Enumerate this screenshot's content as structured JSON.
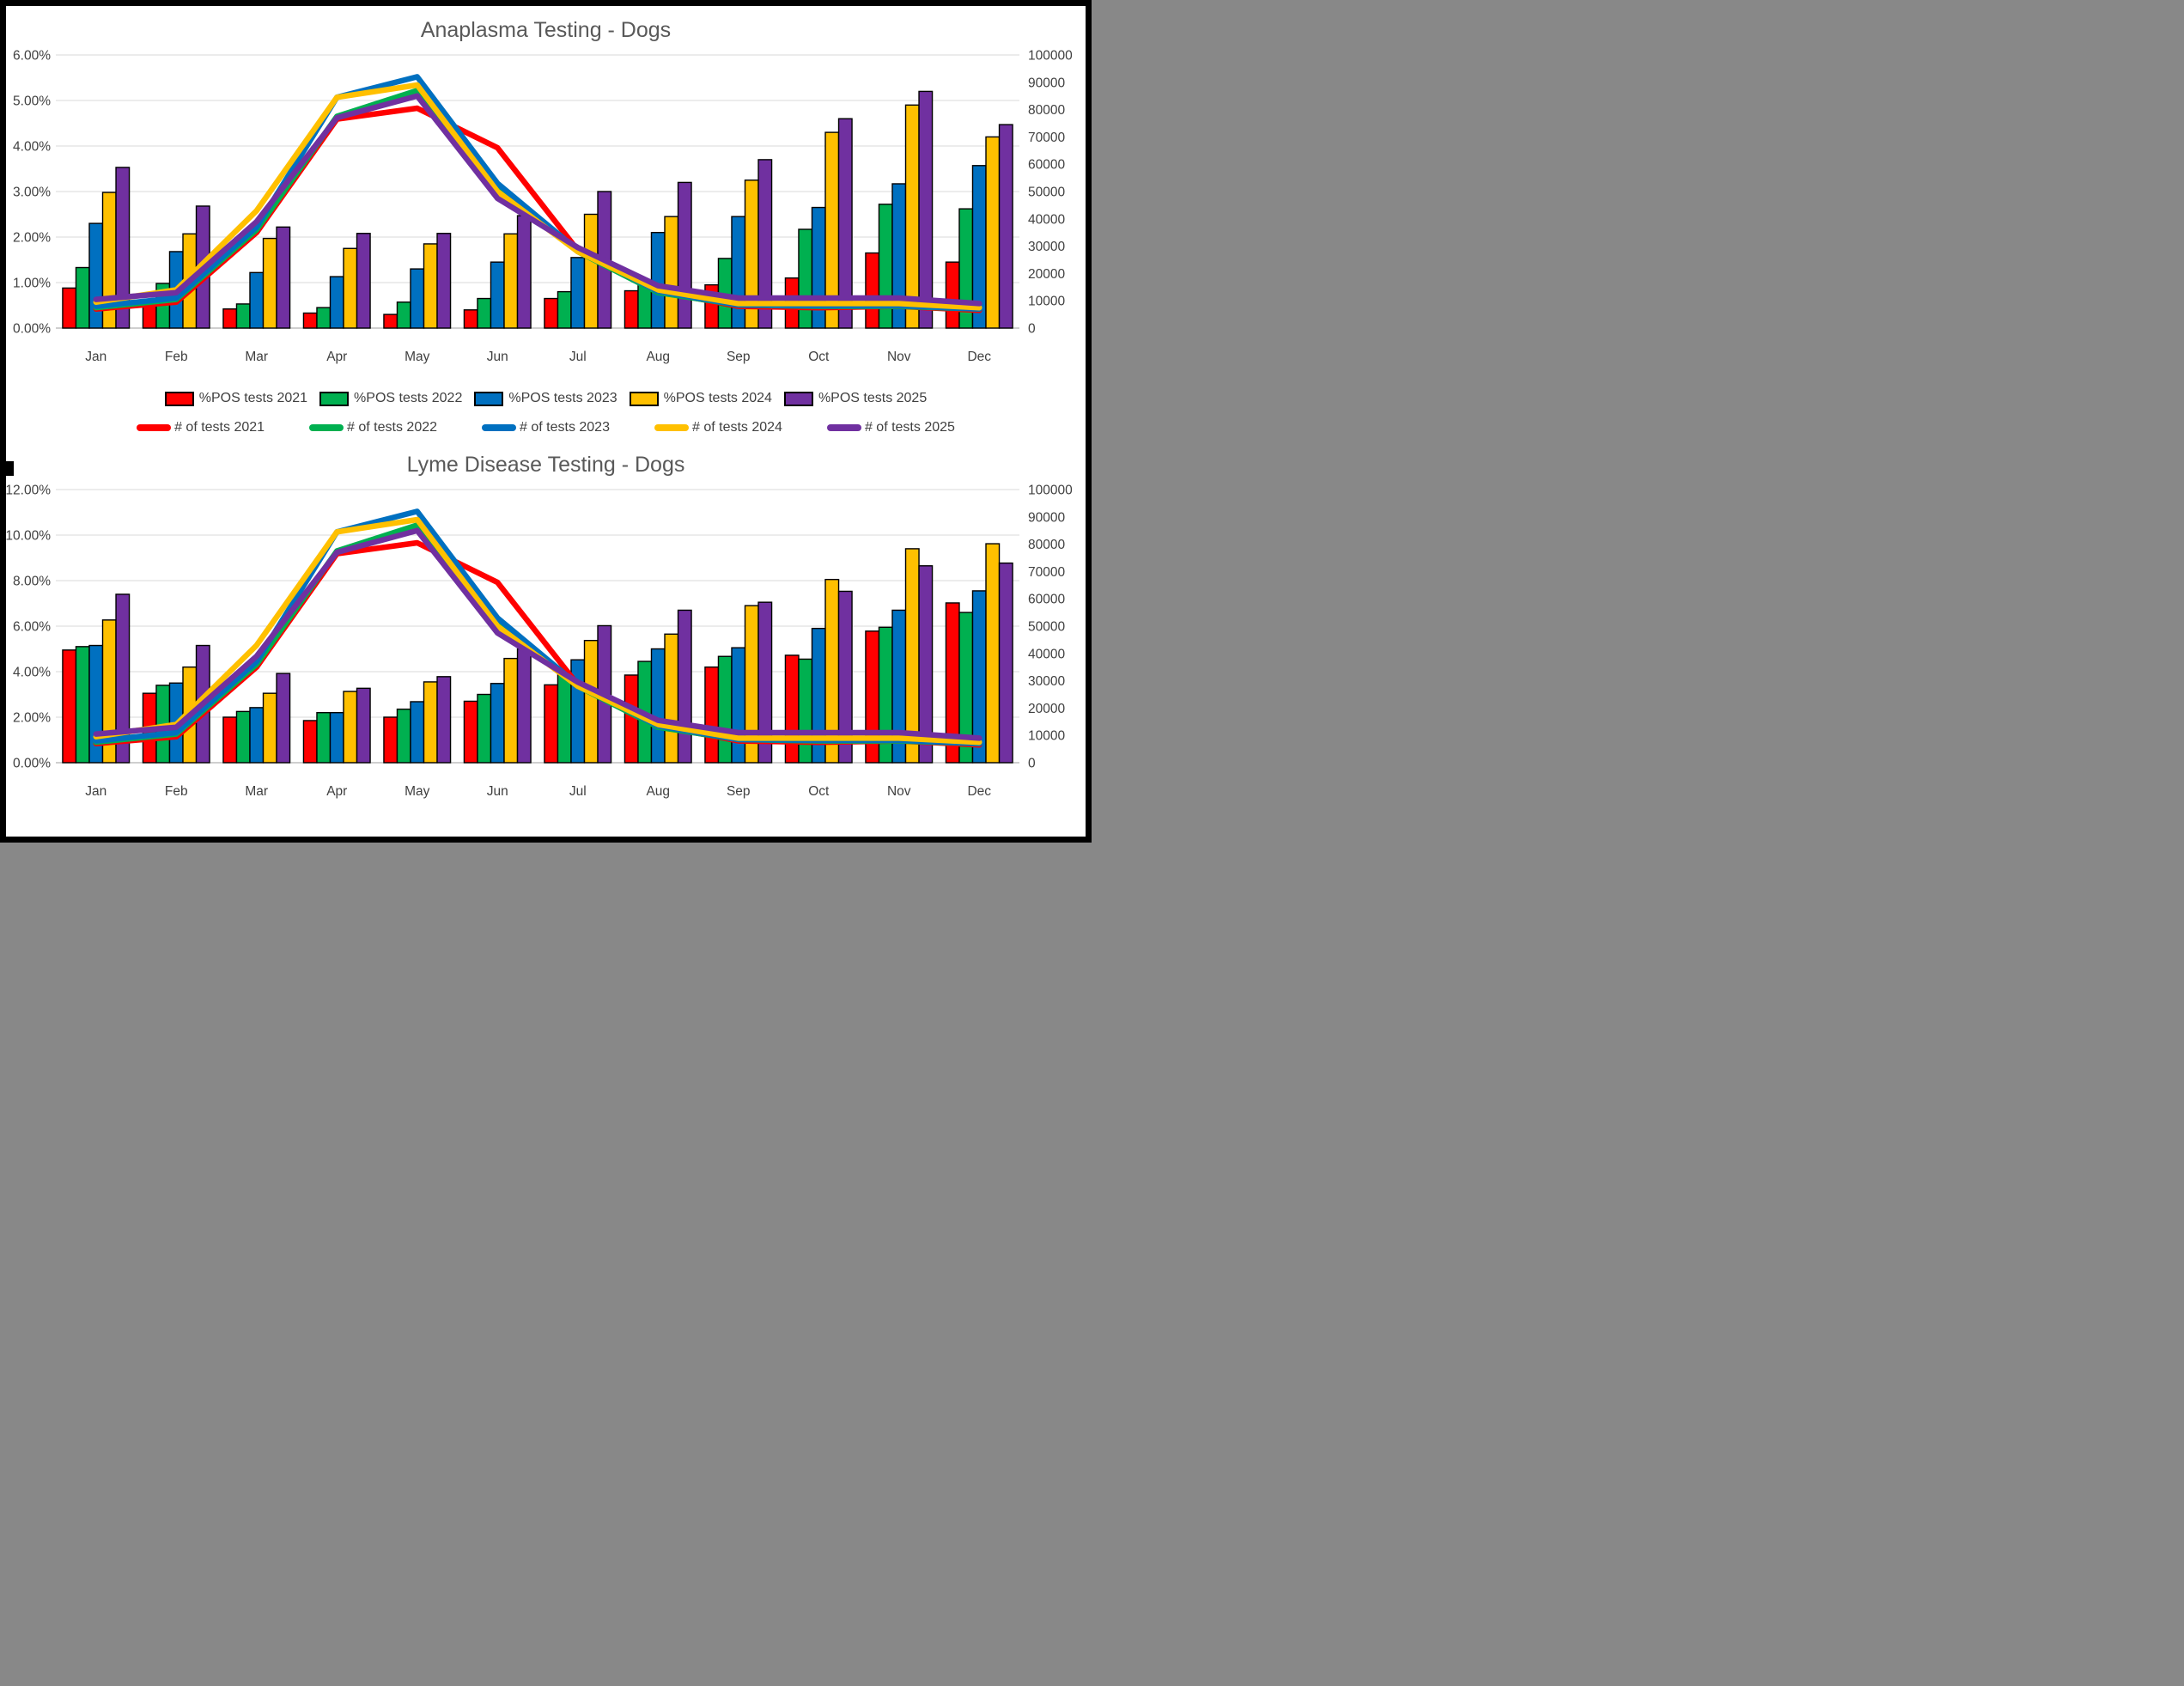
{
  "page": {
    "background": "#FFFFFF",
    "frame_color": "#000000"
  },
  "colors": {
    "y2021": "#FF0000",
    "y2022": "#00B050",
    "y2023": "#0070C0",
    "y2024": "#FFC000",
    "y2025": "#7030A0",
    "gridline": "#D9D9D9",
    "axis_line": "#BFBFBF",
    "tick_text": "#404040",
    "title_text": "#595959"
  },
  "legend": {
    "bar_items": [
      {
        "label": "%POS tests 2021",
        "color": "#FF0000"
      },
      {
        "label": "%POS tests 2022",
        "color": "#00B050"
      },
      {
        "label": "%POS tests 2023",
        "color": "#0070C0"
      },
      {
        "label": "%POS tests 2024",
        "color": "#FFC000"
      },
      {
        "label": "%POS tests 2025",
        "color": "#7030A0"
      }
    ],
    "line_items": [
      {
        "label": "# of tests 2021",
        "color": "#FF0000"
      },
      {
        "label": "# of tests 2022",
        "color": "#00B050"
      },
      {
        "label": "# of tests 2023",
        "color": "#0070C0"
      },
      {
        "label": "# of tests 2024",
        "color": "#FFC000"
      },
      {
        "label": "# of tests 2025",
        "color": "#7030A0"
      }
    ]
  },
  "chart_data": [
    {
      "type": "combo-bar-line",
      "title": "Anaplasma Testing - Dogs",
      "categories": [
        "Jan",
        "Feb",
        "Mar",
        "Apr",
        "May",
        "Jun",
        "Jul",
        "Aug",
        "Sep",
        "Oct",
        "Nov",
        "Dec"
      ],
      "grid": true,
      "legend_position": "below",
      "left_axis": {
        "min": 0,
        "max": 6,
        "step": 1,
        "unit": "percent",
        "tick_labels": [
          "6.00%",
          "5.00%",
          "4.00%",
          "3.00%",
          "2.00%",
          "1.00%",
          "0.00%"
        ]
      },
      "right_axis": {
        "min": 0,
        "max": 100000,
        "step": 10000,
        "tick_labels": [
          "100000",
          "90000",
          "80000",
          "70000",
          "60000",
          "50000",
          "40000",
          "30000",
          "20000",
          "10000",
          "0"
        ]
      },
      "bar_series": [
        {
          "name": "%POS tests 2021",
          "color": "#FF0000",
          "values": [
            0.88,
            0.55,
            0.42,
            0.33,
            0.3,
            0.4,
            0.65,
            0.82,
            0.95,
            1.1,
            1.65,
            1.45
          ]
        },
        {
          "name": "%POS tests 2022",
          "color": "#00B050",
          "values": [
            1.33,
            0.98,
            0.53,
            0.45,
            0.57,
            0.65,
            0.8,
            1.05,
            1.53,
            2.17,
            2.72,
            2.62
          ]
        },
        {
          "name": "%POS tests 2023",
          "color": "#0070C0",
          "values": [
            2.3,
            1.68,
            1.22,
            1.13,
            1.3,
            1.45,
            1.55,
            2.1,
            2.45,
            2.65,
            3.17,
            3.57
          ]
        },
        {
          "name": "%POS tests 2024",
          "color": "#FFC000",
          "values": [
            2.98,
            2.07,
            1.97,
            1.75,
            1.85,
            2.07,
            2.5,
            2.45,
            3.25,
            4.3,
            4.9,
            4.2
          ]
        },
        {
          "name": "%POS tests 2025",
          "color": "#7030A0",
          "values": [
            3.53,
            2.68,
            2.22,
            2.08,
            2.08,
            2.47,
            3.0,
            3.2,
            3.7,
            4.6,
            5.2,
            4.47
          ]
        }
      ],
      "line_series": [
        {
          "name": "# of tests 2021",
          "color": "#FF0000",
          "values": [
            7000,
            9500,
            35000,
            76500,
            80500,
            66000,
            28500,
            13500,
            8000,
            7500,
            8000,
            6500
          ]
        },
        {
          "name": "# of tests 2022",
          "color": "#00B050",
          "values": [
            7500,
            10500,
            36000,
            77500,
            87000,
            51500,
            28000,
            13000,
            8500,
            8000,
            8000,
            7000
          ]
        },
        {
          "name": "# of tests 2023",
          "color": "#0070C0",
          "values": [
            8000,
            11000,
            37000,
            84500,
            92000,
            53000,
            28500,
            13500,
            8500,
            8200,
            8200,
            7000
          ]
        },
        {
          "name": "# of tests 2024",
          "color": "#FFC000",
          "values": [
            9500,
            14000,
            43000,
            84500,
            89000,
            50000,
            28000,
            14000,
            9000,
            9000,
            9000,
            7500
          ]
        },
        {
          "name": "# of tests 2025",
          "color": "#7030A0",
          "values": [
            10500,
            13000,
            39000,
            77000,
            85000,
            47500,
            29500,
            15500,
            11000,
            11000,
            11000,
            9000
          ]
        }
      ]
    },
    {
      "type": "combo-bar-line",
      "title": "Lyme Disease Testing - Dogs",
      "categories": [
        "Jan",
        "Feb",
        "Mar",
        "Apr",
        "May",
        "Jun",
        "Jul",
        "Aug",
        "Sep",
        "Oct",
        "Nov",
        "Dec"
      ],
      "grid": true,
      "legend_position": "none",
      "left_axis": {
        "min": 0,
        "max": 12,
        "step": 2,
        "unit": "percent",
        "tick_labels": [
          "12.00%",
          "10.00%",
          "8.00%",
          "6.00%",
          "4.00%",
          "2.00%",
          "0.00%"
        ]
      },
      "right_axis": {
        "min": 0,
        "max": 100000,
        "step": 10000,
        "tick_labels": [
          "100000",
          "90000",
          "80000",
          "70000",
          "60000",
          "50000",
          "40000",
          "30000",
          "20000",
          "10000",
          "0"
        ]
      },
      "bar_series": [
        {
          "name": "%POS tests 2021",
          "color": "#FF0000",
          "values": [
            4.95,
            3.05,
            2.0,
            1.85,
            2.0,
            2.7,
            3.42,
            3.85,
            4.2,
            4.72,
            5.78,
            7.02
          ]
        },
        {
          "name": "%POS tests 2022",
          "color": "#00B050",
          "values": [
            5.1,
            3.4,
            2.25,
            2.2,
            2.35,
            3.0,
            3.87,
            4.45,
            4.67,
            4.55,
            5.95,
            6.6
          ]
        },
        {
          "name": "%POS tests 2023",
          "color": "#0070C0",
          "values": [
            5.15,
            3.5,
            2.42,
            2.2,
            2.68,
            3.48,
            4.52,
            5.0,
            5.05,
            5.9,
            6.7,
            7.55
          ]
        },
        {
          "name": "%POS tests 2024",
          "color": "#FFC000",
          "values": [
            6.27,
            4.2,
            3.05,
            3.13,
            3.55,
            4.58,
            5.37,
            5.65,
            6.9,
            8.05,
            9.4,
            9.62
          ]
        },
        {
          "name": "%POS tests 2025",
          "color": "#7030A0",
          "values": [
            7.4,
            5.15,
            3.92,
            3.27,
            3.78,
            5.0,
            6.02,
            6.7,
            7.05,
            7.53,
            8.65,
            8.77
          ]
        }
      ],
      "line_series": [
        {
          "name": "# of tests 2021",
          "color": "#FF0000",
          "values": [
            7000,
            9500,
            35000,
            76500,
            80500,
            66000,
            28500,
            13500,
            8000,
            7500,
            8000,
            6500
          ]
        },
        {
          "name": "# of tests 2022",
          "color": "#00B050",
          "values": [
            7500,
            10500,
            36000,
            77500,
            87000,
            51500,
            28000,
            13000,
            8500,
            8000,
            8000,
            7000
          ]
        },
        {
          "name": "# of tests 2023",
          "color": "#0070C0",
          "values": [
            8000,
            11000,
            37000,
            84500,
            92000,
            53000,
            28500,
            13500,
            8500,
            8200,
            8200,
            7000
          ]
        },
        {
          "name": "# of tests 2024",
          "color": "#FFC000",
          "values": [
            9500,
            14000,
            43000,
            84500,
            89000,
            50000,
            28000,
            14000,
            9000,
            9000,
            9000,
            7500
          ]
        },
        {
          "name": "# of tests 2025",
          "color": "#7030A0",
          "values": [
            10500,
            13000,
            39000,
            77000,
            85000,
            47500,
            29500,
            15500,
            11000,
            11000,
            11000,
            9000
          ]
        }
      ]
    }
  ]
}
